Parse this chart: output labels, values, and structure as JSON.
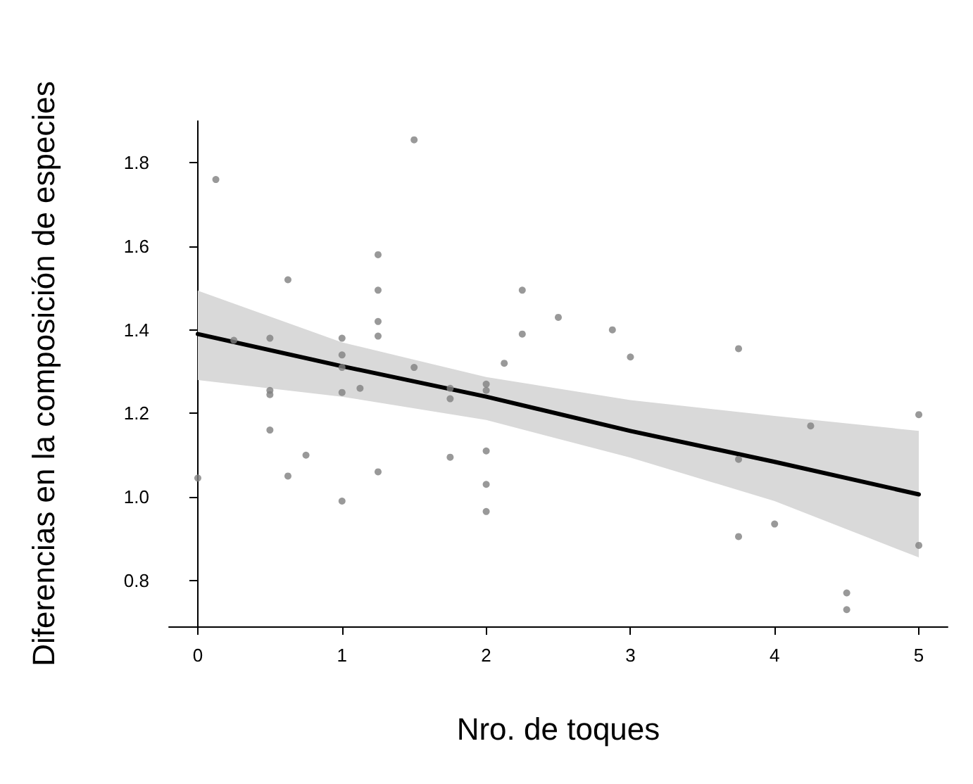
{
  "chart_data": {
    "type": "scatter",
    "xlabel": "Nro. de toques",
    "ylabel": "Diferencias en la composición de especies",
    "xlim": [
      -0.2,
      5.2
    ],
    "ylim": [
      0.69,
      1.9
    ],
    "xticks": [
      0,
      1,
      2,
      3,
      4,
      5
    ],
    "yticks": [
      0.8,
      {
        "value": 1.0,
        "label": "1.0"
      },
      1.2,
      1.4,
      1.6,
      1.8
    ],
    "marker": "circle",
    "series": [
      {
        "color": "#808080",
        "x": [
          0,
          0.125,
          0.25,
          0.5,
          0.5,
          0.5,
          0.5,
          0.625,
          0.625,
          0.75,
          1,
          1,
          1,
          1,
          1,
          1.125,
          1.25,
          1.25,
          1.25,
          1.25,
          1.25,
          1.5,
          1.5,
          1.75,
          1.75,
          1.75,
          2,
          2,
          2,
          2,
          2,
          2.125,
          2.25,
          2.25,
          2.5,
          2.875,
          3,
          3.75,
          3.75,
          3.75,
          4,
          4.25,
          4.5,
          4.5,
          5,
          5
        ],
        "values": [
          1.045,
          1.76,
          1.375,
          1.38,
          1.255,
          1.245,
          1.16,
          1.52,
          1.05,
          1.1,
          1.38,
          1.34,
          1.31,
          1.25,
          0.99,
          1.26,
          1.58,
          1.495,
          1.42,
          1.385,
          1.06,
          1.855,
          1.31,
          1.26,
          1.235,
          1.095,
          1.27,
          1.255,
          1.11,
          1.03,
          0.965,
          1.32,
          1.495,
          1.39,
          1.43,
          1.4,
          1.335,
          1.355,
          1.09,
          0.905,
          0.935,
          1.17,
          0.77,
          0.73,
          1.197,
          0.884
        ]
      },
      {
        "type": "line",
        "color": "#000000",
        "marker": "none",
        "line_style": "solid",
        "x": [
          0,
          1,
          2,
          3,
          4,
          5
        ],
        "values": [
          1.39,
          1.313,
          1.24,
          1.158,
          1.084,
          1.006
        ],
        "lower": [
          1.28,
          1.24,
          1.184,
          1.094,
          0.99,
          0.855
        ],
        "upper": [
          1.494,
          1.37,
          1.287,
          1.232,
          1.194,
          1.158
        ]
      }
    ]
  }
}
